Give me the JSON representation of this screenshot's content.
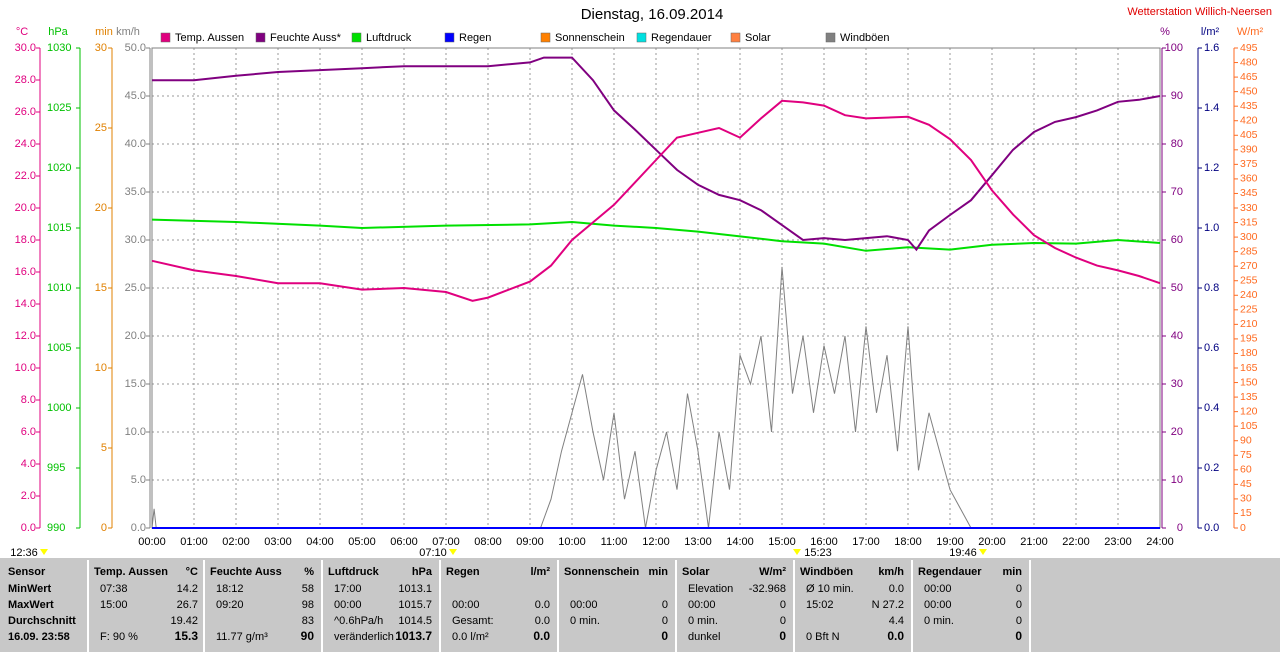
{
  "chart_data": {
    "type": "line",
    "title": "Dienstag, 16.09.2014",
    "station": "Wetterstation Willich-Neersen",
    "xlim": [
      0,
      24
    ],
    "xticks": [
      {
        "value": 0,
        "label": "00:00"
      },
      {
        "value": 1,
        "label": "01:00"
      },
      {
        "value": 2,
        "label": "02:00"
      },
      {
        "value": 3,
        "label": "03:00"
      },
      {
        "value": 4,
        "label": "04:00"
      },
      {
        "value": 5,
        "label": "05:00"
      },
      {
        "value": 6,
        "label": "06:00"
      },
      {
        "value": 7,
        "label": "07:00"
      },
      {
        "value": 8,
        "label": "08:00"
      },
      {
        "value": 9,
        "label": "09:00"
      },
      {
        "value": 10,
        "label": "10:00"
      },
      {
        "value": 11,
        "label": "11:00"
      },
      {
        "value": 12,
        "label": "12:00"
      },
      {
        "value": 13,
        "label": "13:00"
      },
      {
        "value": 14,
        "label": "14:00"
      },
      {
        "value": 15,
        "label": "15:00"
      },
      {
        "value": 16,
        "label": "16:00"
      },
      {
        "value": 17,
        "label": "17:00"
      },
      {
        "value": 18,
        "label": "18:00"
      },
      {
        "value": 19,
        "label": "19:00"
      },
      {
        "value": 20,
        "label": "20:00"
      },
      {
        "value": 21,
        "label": "21:00"
      },
      {
        "value": 22,
        "label": "22:00"
      },
      {
        "value": 23,
        "label": "23:00"
      },
      {
        "value": 24,
        "label": "24:00"
      }
    ],
    "grid": true,
    "annotations": [
      "12:36",
      "07:10",
      "15:23",
      "19:46"
    ],
    "axes": [
      {
        "unit": "°C",
        "color": "#e0007f",
        "ylim": [
          0,
          30
        ],
        "yticks": [
          {
            "value": 0,
            "label": "0.0"
          },
          {
            "value": 2,
            "label": "2.0"
          },
          {
            "value": 4,
            "label": "4.0"
          },
          {
            "value": 6,
            "label": "6.0"
          },
          {
            "value": 8,
            "label": "8.0"
          },
          {
            "value": 10,
            "label": "10.0"
          },
          {
            "value": 12,
            "label": "12.0"
          },
          {
            "value": 14,
            "label": "14.0"
          },
          {
            "value": 16,
            "label": "16.0"
          },
          {
            "value": 18,
            "label": "18.0"
          },
          {
            "value": 20,
            "label": "20.0"
          },
          {
            "value": 22,
            "label": "22.0"
          },
          {
            "value": 24,
            "label": "24.0"
          },
          {
            "value": 26,
            "label": "26.0"
          },
          {
            "value": 28,
            "label": "28.0"
          },
          {
            "value": 30,
            "label": "30.0"
          }
        ]
      },
      {
        "unit": "hPa",
        "color": "#00c000",
        "ylim": [
          990,
          1030
        ],
        "yticks": [
          990,
          995,
          1000,
          1005,
          1010,
          1015,
          1020,
          1025,
          1030
        ]
      },
      {
        "unit": "min",
        "color": "#e08000",
        "ylim": [
          0,
          30
        ],
        "yticks": [
          0,
          5,
          10,
          15,
          20,
          25,
          30
        ]
      },
      {
        "unit": "km/h",
        "color": "#808080",
        "ylim": [
          0,
          50
        ],
        "yticks": [
          {
            "value": 0,
            "label": "0.0"
          },
          {
            "value": 5,
            "label": "5.0"
          },
          {
            "value": 10,
            "label": "10.0"
          },
          {
            "value": 15,
            "label": "15.0"
          },
          {
            "value": 20,
            "label": "20.0"
          },
          {
            "value": 25,
            "label": "25.0"
          },
          {
            "value": 30,
            "label": "30.0"
          },
          {
            "value": 35,
            "label": "35.0"
          },
          {
            "value": 40,
            "label": "40.0"
          },
          {
            "value": 45,
            "label": "45.0"
          },
          {
            "value": 50,
            "label": "50.0"
          }
        ]
      },
      {
        "unit": "%",
        "color": "#800080",
        "ylim": [
          0,
          100
        ],
        "yticks": [
          0,
          10,
          20,
          30,
          40,
          50,
          60,
          70,
          80,
          90,
          100
        ]
      },
      {
        "unit": "l/m²",
        "color": "#000080",
        "ylim": [
          0,
          1.6
        ],
        "yticks": [
          {
            "value": 0,
            "label": "0.0"
          },
          {
            "value": 0.2,
            "label": "0.2"
          },
          {
            "value": 0.4,
            "label": "0.4"
          },
          {
            "value": 0.6,
            "label": "0.6"
          },
          {
            "value": 0.8,
            "label": "0.8"
          },
          {
            "value": 1,
            "label": "1.0"
          },
          {
            "value": 1.2,
            "label": "1.2"
          },
          {
            "value": 1.4,
            "label": "1.4"
          },
          {
            "value": 1.6,
            "label": "1.6"
          }
        ]
      },
      {
        "unit": "W/m²",
        "color": "#ff6a20",
        "ylim": [
          0,
          495
        ],
        "yticks": [
          0,
          15,
          30,
          45,
          60,
          75,
          90,
          105,
          120,
          135,
          150,
          165,
          180,
          195,
          210,
          225,
          240,
          255,
          270,
          285,
          300,
          315,
          330,
          345,
          360,
          375,
          390,
          405,
          420,
          435,
          450,
          465,
          480,
          495
        ]
      }
    ],
    "series": [
      {
        "name": "Temp. Aussen",
        "color": "#e0007f",
        "axis": 0,
        "x": [
          0,
          1,
          2,
          3,
          4,
          5,
          6,
          7,
          7.63,
          8,
          9,
          9.5,
          10,
          10.5,
          11,
          11.5,
          12,
          12.5,
          13,
          13.5,
          14,
          14.5,
          15,
          15.5,
          16,
          16.5,
          17,
          18,
          18.5,
          19,
          19.5,
          20,
          20.5,
          21,
          21.5,
          22,
          22.5,
          23,
          23.5,
          24
        ],
        "values": [
          16.7,
          16.1,
          15.75,
          15.3,
          15.3,
          14.9,
          15.0,
          14.75,
          14.2,
          14.4,
          15.4,
          16.4,
          18.0,
          19.1,
          20.2,
          21.6,
          23.0,
          24.4,
          24.7,
          25.0,
          24.4,
          25.6,
          26.7,
          26.6,
          26.4,
          25.8,
          25.6,
          25.7,
          25.2,
          24.3,
          23.0,
          21.1,
          19.6,
          18.3,
          17.5,
          16.9,
          16.4,
          16.1,
          15.75,
          15.3
        ]
      },
      {
        "name": "Feuchte Auss*",
        "color": "#800080",
        "axis": 4,
        "x": [
          0,
          1,
          2,
          3,
          5,
          6,
          8,
          9,
          9.33,
          10,
          10.5,
          11,
          11.5,
          12,
          12.5,
          13,
          13.5,
          14,
          14.5,
          15,
          15.5,
          16,
          16.5,
          17,
          17.5,
          18,
          18.2,
          18.5,
          19,
          19.5,
          20,
          20.5,
          21,
          21.5,
          22,
          22.5,
          23,
          23.5,
          24
        ],
        "values": [
          93.3,
          93.3,
          94.2,
          95,
          95.8,
          96.2,
          96.2,
          97,
          98,
          98,
          93.3,
          87,
          83,
          78.8,
          74.6,
          71.5,
          69.4,
          68.3,
          66.2,
          63.1,
          60,
          60.4,
          60,
          60.4,
          60.8,
          60,
          58,
          62,
          65.2,
          68.3,
          73.5,
          78.8,
          82.5,
          84.6,
          85.6,
          87,
          88.8,
          89.2,
          90
        ]
      },
      {
        "name": "Luftdruck",
        "color": "#00e000",
        "axis": 1,
        "x": [
          0,
          2,
          4,
          5,
          7,
          9,
          10,
          11,
          12,
          13,
          14,
          15,
          16,
          17,
          18,
          19,
          20,
          21,
          22,
          23,
          24
        ],
        "values": [
          1015.7,
          1015.5,
          1015.2,
          1015.0,
          1015.2,
          1015.3,
          1015.5,
          1015.2,
          1015.0,
          1014.7,
          1014.3,
          1013.9,
          1013.7,
          1013.1,
          1013.4,
          1013.2,
          1013.6,
          1013.75,
          1013.7,
          1014.0,
          1013.75
        ]
      },
      {
        "name": "Regen",
        "color": "#0000ff",
        "axis": 5,
        "x": [
          0,
          24
        ],
        "values": [
          0,
          0
        ]
      },
      {
        "name": "Sonnenschein",
        "color": "#ff8000",
        "axis": 2,
        "x": [
          0,
          24
        ],
        "values": [
          0,
          0
        ]
      },
      {
        "name": "Regendauer",
        "color": "#00e0e0",
        "axis": 2,
        "x": [
          0,
          24
        ],
        "values": [
          0,
          0
        ]
      },
      {
        "name": "Solar",
        "color": "#ff8040",
        "axis": 6,
        "x": [
          0,
          24
        ],
        "values": [
          0,
          0
        ]
      },
      {
        "name": "Windböen",
        "color": "#808080",
        "axis": 3,
        "x": [
          0,
          0.05,
          0.1,
          0.15,
          9.25,
          9.5,
          9.75,
          10,
          10.25,
          10.5,
          10.75,
          11,
          11.25,
          11.5,
          11.75,
          12,
          12.25,
          12.5,
          12.75,
          13,
          13.25,
          13.5,
          13.75,
          14,
          14.25,
          14.5,
          14.75,
          15,
          15.25,
          15.5,
          15.75,
          16,
          16.25,
          16.5,
          16.75,
          17,
          17.25,
          17.5,
          17.75,
          18,
          18.25,
          18.5,
          18.75,
          19,
          19.25,
          19.5,
          19.75,
          24
        ],
        "values": [
          0,
          2,
          0,
          0,
          0,
          3,
          8,
          12,
          16,
          10,
          5,
          12,
          3,
          8,
          0,
          6,
          10,
          4,
          14,
          8,
          0,
          10,
          4,
          18,
          15,
          20,
          10,
          27.2,
          14,
          20,
          12,
          19,
          14,
          20,
          10,
          21,
          12,
          18,
          8,
          21,
          6,
          12,
          8,
          4,
          2,
          0,
          0,
          0
        ]
      }
    ]
  },
  "table": {
    "row_labels": [
      "Sensor",
      "MinWert",
      "MaxWert",
      "Durchschnitt",
      "16.09. 23:58"
    ],
    "columns": [
      {
        "title": "Temp. Aussen",
        "unit": "°C",
        "rows": [
          {
            "label": "07:38",
            "value": "14.2"
          },
          {
            "label": "15:00",
            "value": "26.7"
          },
          {
            "value": "19.42"
          },
          {
            "label": "F: 90 %",
            "value": "15.3"
          }
        ]
      },
      {
        "title": "Feuchte Auss",
        "unit": "%",
        "rows": [
          {
            "label": "18:12",
            "value": "58"
          },
          {
            "label": "09:20",
            "value": "98"
          },
          {
            "value": "83"
          },
          {
            "label": "11.77 g/m³",
            "value": "90"
          }
        ]
      },
      {
        "title": "Luftdruck",
        "unit": "hPa",
        "rows": [
          {
            "label": "17:00",
            "value": "1013.1"
          },
          {
            "label": "00:00",
            "value": "1015.7"
          },
          {
            "label": "^0.6hPa/h",
            "value": "1014.5"
          },
          {
            "label": "veränderlich",
            "value": "1013.7"
          }
        ]
      },
      {
        "title": "Regen",
        "unit": "l/m²",
        "rows": [
          null,
          {
            "label": "00:00",
            "value": "0.0"
          },
          {
            "label": "Gesamt:",
            "value": "0.0"
          },
          {
            "label": "0.0 l/m²",
            "value": "0.0"
          }
        ]
      },
      {
        "title": "Sonnenschein",
        "unit": "min",
        "rows": [
          null,
          {
            "label": "00:00",
            "value": "0"
          },
          {
            "label": "0 min.",
            "value": "0"
          },
          {
            "value": "0"
          }
        ]
      },
      {
        "title": "Solar",
        "unit": "W/m²",
        "rows": [
          {
            "label": "Elevation",
            "value": "-32.968"
          },
          {
            "label": "00:00",
            "value": "0"
          },
          {
            "label": "0 min.",
            "value": "0"
          },
          {
            "label": "dunkel",
            "value": "0"
          }
        ]
      },
      {
        "title": "Windböen",
        "unit": "km/h",
        "rows": [
          {
            "label": "Ø 10 min.",
            "value": "0.0"
          },
          {
            "label": "15:02",
            "value": "N 27.2"
          },
          {
            "value": "4.4"
          },
          {
            "label": "0 Bft N",
            "value": "0.0"
          }
        ]
      },
      {
        "title": "Regendauer",
        "unit": "min",
        "rows": [
          {
            "label": "00:00",
            "value": "0"
          },
          {
            "label": "00:00",
            "value": "0"
          },
          {
            "label": "0 min.",
            "value": "0"
          },
          {
            "value": "0"
          }
        ]
      }
    ]
  }
}
